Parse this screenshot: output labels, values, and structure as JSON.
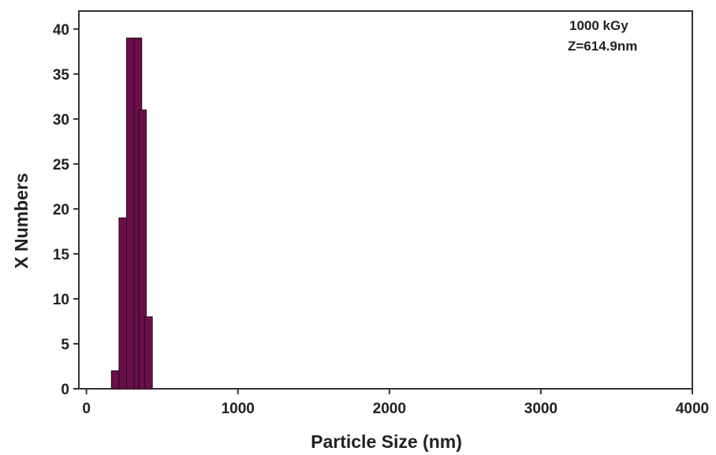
{
  "chart_data": {
    "type": "bar",
    "xlabel": "Particle Size (nm)",
    "ylabel": "X Numbers",
    "xlim": [
      -50,
      4000
    ],
    "ylim": [
      0,
      42
    ],
    "xticks": [
      0,
      1000,
      2000,
      3000,
      4000
    ],
    "yticks": [
      0,
      5,
      10,
      15,
      20,
      25,
      30,
      35,
      40
    ],
    "bar_color": "#6b0f4a",
    "bin_width": 50,
    "bars": [
      {
        "x": 190,
        "value": 2
      },
      {
        "x": 240,
        "value": 19
      },
      {
        "x": 290,
        "value": 39
      },
      {
        "x": 340,
        "value": 39
      },
      {
        "x": 370,
        "value": 31
      },
      {
        "x": 410,
        "value": 8
      }
    ],
    "annotations": [
      "1000 kGy",
      "Z=614.9nm"
    ],
    "grid": false,
    "legend": "none"
  }
}
